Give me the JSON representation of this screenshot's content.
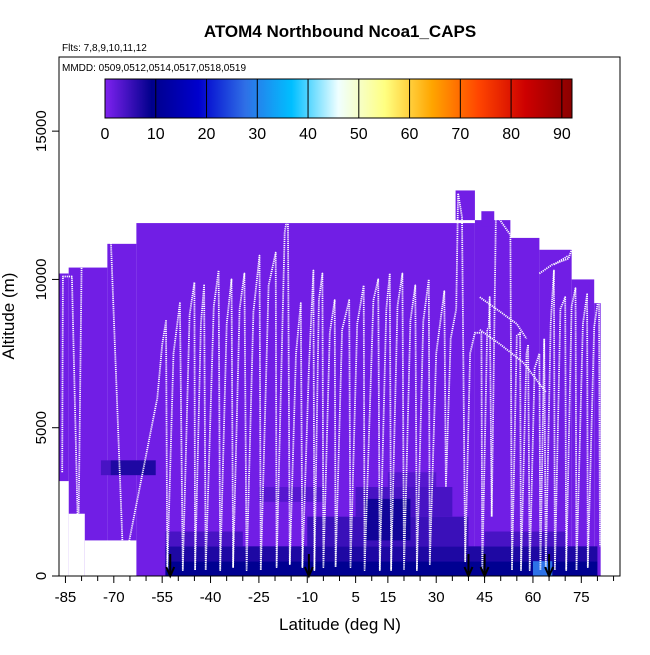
{
  "chart_data": {
    "type": "heatmap",
    "title": "ATOM4 Northbound Ncoa1_CAPS",
    "annotations": [
      "Flts: 7,8,9,10,11,12",
      "MMDD: 0509,0512,0514,0517,0518,0519"
    ],
    "xlabel": "Latitude (deg N)",
    "ylabel": "Altitude (m)",
    "xlim": [
      -87,
      87
    ],
    "ylim": [
      0,
      17500
    ],
    "x_ticks": [
      -85,
      -70,
      -55,
      -40,
      -25,
      -10,
      5,
      15,
      30,
      45,
      60,
      75
    ],
    "y_ticks": [
      0,
      5000,
      10000,
      15000
    ],
    "colorbar": {
      "ticks": [
        0,
        10,
        20,
        30,
        40,
        50,
        60,
        70,
        80,
        90
      ],
      "range": [
        0,
        92
      ],
      "colors": [
        "#7f22f0",
        "#00008b",
        "#0000cd",
        "#2f6fe6",
        "#00bfff",
        "#f0ffff",
        "#ffff80",
        "#ffa500",
        "#ff4500",
        "#cd0000",
        "#8b0000"
      ]
    },
    "cells": [
      {
        "x0": -87,
        "x1": -84,
        "y0": 0,
        "y1": 10200,
        "value": 1
      },
      {
        "x0": -84,
        "x1": -72,
        "y0": 0,
        "y1": 10400,
        "value": 1
      },
      {
        "x0": -72,
        "x1": -63,
        "y0": 0,
        "y1": 11200,
        "value": 1
      },
      {
        "x0": -63,
        "x1": 42,
        "y0": 0,
        "y1": 11900,
        "value": 1
      },
      {
        "x0": 42,
        "x1": 53,
        "y0": 0,
        "y1": 12000,
        "value": 1
      },
      {
        "x0": 53,
        "x1": 62,
        "y0": 0,
        "y1": 11400,
        "value": 1
      },
      {
        "x0": 62,
        "x1": 72,
        "y0": 0,
        "y1": 11000,
        "value": 1
      },
      {
        "x0": 72,
        "x1": 79,
        "y0": 0,
        "y1": 10000,
        "value": 1
      },
      {
        "x0": 79,
        "x1": 81,
        "y0": 0,
        "y1": 9200,
        "value": 1
      },
      {
        "x0": -87,
        "x1": -84,
        "y0": 0,
        "y1": 3200,
        "value": 0
      },
      {
        "x0": -84,
        "x1": -79,
        "y0": 0,
        "y1": 2100,
        "value": 0
      },
      {
        "x0": -79,
        "x1": -63,
        "y0": 0,
        "y1": 1200,
        "value": 0
      },
      {
        "x0": 36,
        "x1": 42,
        "y0": 12000,
        "y1": 13000,
        "value": 1
      },
      {
        "x0": 44,
        "x1": 48,
        "y0": 11800,
        "y1": 12300,
        "value": 1
      },
      {
        "x0": -71,
        "x1": -57,
        "y0": 3400,
        "y1": 3900,
        "value": 7
      },
      {
        "x0": -74,
        "x1": -71,
        "y0": 3400,
        "y1": 3900,
        "value": 4
      },
      {
        "x0": -54,
        "x1": 80,
        "y0": 0,
        "y1": 500,
        "value": 10
      },
      {
        "x0": -54,
        "x1": 80,
        "y0": 500,
        "y1": 1000,
        "value": 7
      },
      {
        "x0": -54,
        "x1": -30,
        "y0": 1000,
        "y1": 1500,
        "value": 4
      },
      {
        "x0": -10,
        "x1": 40,
        "y0": 1000,
        "y1": 2000,
        "value": 5
      },
      {
        "x0": 5,
        "x1": 35,
        "y0": 2000,
        "y1": 3000,
        "value": 4
      },
      {
        "x0": 45,
        "x1": 70,
        "y0": 1000,
        "y1": 1500,
        "value": 4
      },
      {
        "x0": -25,
        "x1": -5,
        "y0": 2500,
        "y1": 3000,
        "value": 3
      },
      {
        "x0": 8,
        "x1": 22,
        "y0": 1200,
        "y1": 2600,
        "value": 8
      },
      {
        "x0": 15,
        "x1": 30,
        "y0": 3000,
        "y1": 3500,
        "value": 3
      },
      {
        "x0": 60,
        "x1": 66,
        "y0": 0,
        "y1": 500,
        "value": 28
      }
    ],
    "flight_tracks": [
      [
        [
          -86,
          3500
        ],
        [
          -85.8,
          10100
        ],
        [
          -83,
          10100
        ],
        [
          -81,
          1000
        ],
        [
          -80,
          10500
        ],
        [
          -78,
          11200
        ],
        [
          -73,
          11500
        ],
        [
          -71,
          11550
        ],
        [
          -67,
          200
        ],
        [
          -56.5,
          6000
        ],
        [
          -55,
          7800
        ],
        [
          -53.8,
          8600
        ],
        [
          -53.4,
          200
        ],
        [
          -51.5,
          7500
        ],
        [
          -49.5,
          9200
        ],
        [
          -48.6,
          200
        ],
        [
          -46.5,
          8800
        ],
        [
          -45,
          9900
        ],
        [
          -44.8,
          200
        ],
        [
          -43,
          8500
        ],
        [
          -42,
          9800
        ],
        [
          -41.5,
          200
        ],
        [
          -39,
          9100
        ],
        [
          -37.5,
          10300
        ],
        [
          -37,
          200
        ],
        [
          -35,
          8500
        ],
        [
          -33.5,
          10000
        ],
        [
          -33,
          300
        ],
        [
          -31,
          9000
        ],
        [
          -29.5,
          10200
        ],
        [
          -28.8,
          200
        ],
        [
          -26.7,
          8900
        ],
        [
          -24.8,
          10800
        ],
        [
          -24.4,
          200
        ],
        [
          -22,
          9800
        ],
        [
          -19.8,
          10900
        ],
        [
          -19.5,
          300
        ],
        [
          -17,
          11600
        ],
        [
          -16,
          12200
        ],
        [
          -15.4,
          400
        ],
        [
          -13.5,
          7500
        ],
        [
          -12,
          9200
        ],
        [
          -11.5,
          300
        ],
        [
          -9.5,
          7000
        ],
        [
          -8.1,
          10300
        ],
        [
          -7.8,
          200
        ],
        [
          -6.4,
          9300
        ],
        [
          -5.3,
          10200
        ],
        [
          -5,
          300
        ],
        [
          -3,
          8200
        ],
        [
          -1.5,
          9300
        ],
        [
          -1.2,
          300
        ],
        [
          0.8,
          8300
        ],
        [
          3,
          9300
        ],
        [
          3.4,
          300
        ],
        [
          5.5,
          8500
        ],
        [
          7.5,
          9800
        ],
        [
          7.8,
          200
        ],
        [
          10.5,
          9300
        ],
        [
          12,
          10000
        ],
        [
          12.5,
          200
        ],
        [
          14.5,
          9000
        ],
        [
          15.6,
          10200
        ],
        [
          16,
          200
        ],
        [
          18,
          9100
        ],
        [
          19.5,
          10200
        ],
        [
          20,
          200
        ],
        [
          22,
          8600
        ],
        [
          23.5,
          9800
        ],
        [
          24,
          200
        ],
        [
          26,
          8600
        ],
        [
          27.7,
          10000
        ],
        [
          28,
          400
        ],
        [
          30,
          7500
        ],
        [
          32.5,
          9600
        ],
        [
          33,
          3000
        ],
        [
          34.5,
          8000
        ],
        [
          36.2,
          9000
        ],
        [
          36.8,
          12900
        ],
        [
          38,
          12100
        ],
        [
          39,
          500
        ],
        [
          40.5,
          7500
        ],
        [
          42,
          8200
        ],
        [
          44,
          8200
        ],
        [
          44.3,
          200
        ],
        [
          45.8,
          8300
        ],
        [
          46.3,
          8400
        ],
        [
          46.6,
          9400
        ],
        [
          47.2,
          2000
        ],
        [
          48.5,
          12200
        ],
        [
          53,
          11500
        ],
        [
          53.5,
          200
        ],
        [
          55,
          8100
        ],
        [
          56,
          8200
        ],
        [
          56.3,
          200
        ],
        [
          58,
          7500
        ],
        [
          58.5,
          7800
        ],
        [
          59,
          200
        ],
        [
          60.5,
          7000
        ],
        [
          62,
          7500
        ],
        [
          62.3,
          200
        ],
        [
          63.5,
          8000
        ],
        [
          64,
          300
        ],
        [
          65.5,
          8500
        ],
        [
          66.5,
          10300
        ],
        [
          66.8,
          200
        ],
        [
          68.5,
          9000
        ],
        [
          70,
          9400
        ],
        [
          70.3,
          200
        ],
        [
          72,
          9100
        ],
        [
          73.2,
          9700
        ],
        [
          73.5,
          200
        ],
        [
          75.5,
          8500
        ],
        [
          76.8,
          9500
        ],
        [
          77,
          300
        ],
        [
          79,
          8400
        ],
        [
          80.5,
          9500
        ],
        [
          80.8,
          1000
        ]
      ]
    ],
    "extra_tracks": [
      [
        [
          43.5,
          8300
        ],
        [
          50,
          7800
        ],
        [
          57,
          7200
        ],
        [
          64,
          6200
        ]
      ],
      [
        [
          43.5,
          9400
        ],
        [
          50,
          8900
        ],
        [
          55,
          8500
        ],
        [
          58,
          8000
        ]
      ],
      [
        [
          62,
          10200
        ],
        [
          66,
          10500
        ],
        [
          71,
          10700
        ],
        [
          72,
          11000
        ]
      ],
      [
        [
          66.5,
          10500
        ],
        [
          71,
          10800
        ]
      ]
    ],
    "arrows_lat": [
      -52.5,
      -9.5,
      40,
      45,
      65
    ]
  }
}
